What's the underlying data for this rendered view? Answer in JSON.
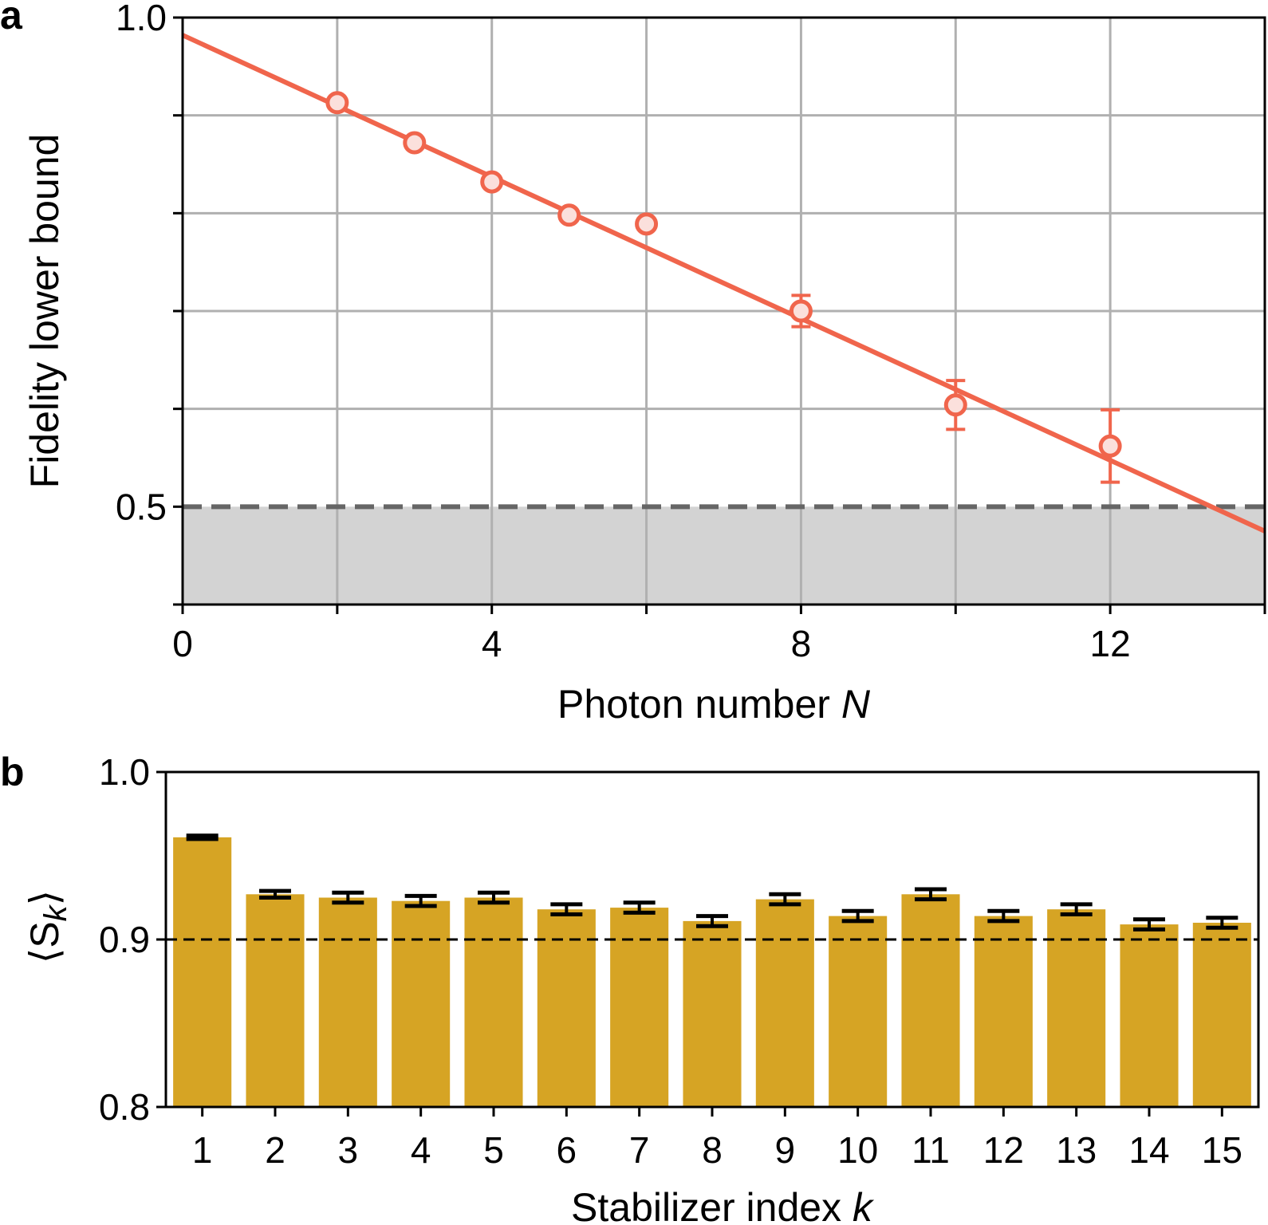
{
  "chart_data": [
    {
      "panel_label": "a",
      "type": "scatter",
      "xlabel": "Photon number ",
      "xlabel_var": "N",
      "ylabel": "Fidelity lower bound",
      "xlim": [
        0,
        14
      ],
      "ylim": [
        0.4,
        1.0
      ],
      "xticks": [
        0,
        4,
        8,
        12
      ],
      "xtick_labels": [
        "0",
        "4",
        "8",
        "12"
      ],
      "xticks_minor": [
        2,
        6,
        10,
        14
      ],
      "yticks": [
        0.4,
        0.5,
        0.6,
        0.7,
        0.8,
        0.9,
        1.0
      ],
      "ytick_labels": [
        "",
        "0.5",
        "",
        "",
        "",
        "",
        "1.0"
      ],
      "grid": true,
      "threshold": 0.5,
      "points": [
        {
          "x": 2,
          "y": 0.913,
          "err": 0.004
        },
        {
          "x": 3,
          "y": 0.872,
          "err": 0.004
        },
        {
          "x": 4,
          "y": 0.832,
          "err": 0.005
        },
        {
          "x": 5,
          "y": 0.798,
          "err": 0.005
        },
        {
          "x": 6,
          "y": 0.789,
          "err": 0.006
        },
        {
          "x": 8,
          "y": 0.7,
          "err": 0.016
        },
        {
          "x": 10,
          "y": 0.604,
          "err": 0.025
        },
        {
          "x": 12,
          "y": 0.562,
          "err": 0.037
        }
      ],
      "fit_line": {
        "x": [
          0,
          14
        ],
        "y": [
          0.982,
          0.475
        ]
      },
      "colors": {
        "data": "#f0654c",
        "marker_fill": "#fbe0dc",
        "shade": "#d3d3d3",
        "threshold": "#666666",
        "grid": "#b0b0b0"
      }
    },
    {
      "panel_label": "b",
      "type": "bar",
      "xlabel": "Stabilizer index ",
      "xlabel_var": "k",
      "ylabel": "⟨S",
      "ylabel_sub": "k",
      "ylabel_close": "⟩",
      "ylim": [
        0.8,
        1.0
      ],
      "yticks": [
        0.8,
        0.9,
        1.0
      ],
      "ytick_labels": [
        "0.8",
        "0.9",
        "1.0"
      ],
      "categories": [
        "1",
        "2",
        "3",
        "4",
        "5",
        "6",
        "7",
        "8",
        "9",
        "10",
        "11",
        "12",
        "13",
        "14",
        "15"
      ],
      "values": [
        0.961,
        0.927,
        0.925,
        0.923,
        0.925,
        0.918,
        0.919,
        0.911,
        0.924,
        0.914,
        0.927,
        0.914,
        0.918,
        0.909,
        0.91
      ],
      "errors": [
        0.001,
        0.002,
        0.003,
        0.003,
        0.003,
        0.003,
        0.003,
        0.003,
        0.003,
        0.003,
        0.003,
        0.003,
        0.003,
        0.003,
        0.003
      ],
      "threshold": 0.9,
      "grid": false,
      "colors": {
        "bar": "#d6a424",
        "error": "#000000",
        "threshold": "#000000"
      }
    }
  ]
}
